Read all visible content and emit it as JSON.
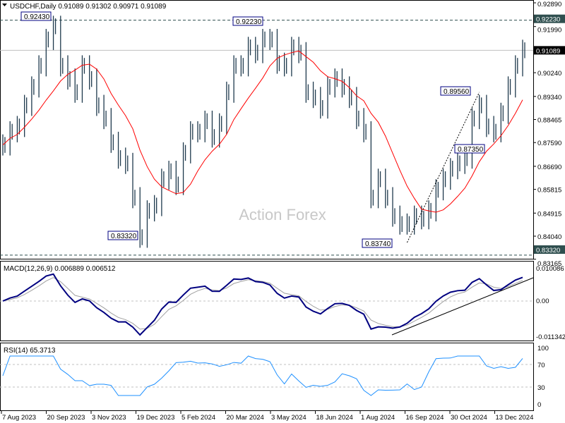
{
  "header": {
    "symbol": "USDCHF,Daily",
    "ohlc": "0.91089 0.91302 0.90971 0.91089",
    "collapse_icon": "triangle-down-icon"
  },
  "watermark": "Action Forex",
  "colors": {
    "bars": "#1f3a4d",
    "ma": "#ff0000",
    "macd": "#000080",
    "signal": "#a0a0a0",
    "rsi": "#1e90ff",
    "label_border": "#000080",
    "trendline": "#000000"
  },
  "chart_data": [
    {
      "type": "bar",
      "title": "USDCHF,Daily",
      "ylim": [
        0.83165,
        0.9289
      ],
      "y_ticks": [
        "0.92890",
        "0.91990",
        "0.90240",
        "0.89340",
        "0.88465",
        "0.87590",
        "0.86690",
        "0.85815",
        "0.84915",
        "0.84040",
        "0.83165"
      ],
      "current_price": "0.91089",
      "horizontal_levels": [
        "0.92230",
        "0.83320"
      ],
      "annotations": [
        "0.92430",
        "0.92230",
        "0.89560",
        "0.87350",
        "0.83740",
        "0.83320"
      ],
      "x_ticks": [
        "7 Aug 2023",
        "20 Sep 2023",
        "3 Nov 2023",
        "19 Dec 2023",
        "5 Feb 2024",
        "20 Mar 2024",
        "3 May 2024",
        "18 Jun 2024",
        "1 Aug 2024",
        "16 Sep 2024",
        "30 Oct 2024",
        "13 Dec 2024"
      ],
      "series": [
        {
          "values": [
            0.875,
            0.88,
            0.882,
            0.89,
            0.897,
            0.905,
            0.915,
            0.92,
            0.905,
            0.9,
            0.895,
            0.905,
            0.9,
            0.89,
            0.885,
            0.876,
            0.87,
            0.868,
            0.855,
            0.84,
            0.85,
            0.852,
            0.862,
            0.865,
            0.86,
            0.872,
            0.88,
            0.88,
            0.884,
            0.878,
            0.883,
            0.895,
            0.905,
            0.905,
            0.912,
            0.91,
            0.915,
            0.915,
            0.906,
            0.905,
            0.912,
            0.91,
            0.895,
            0.893,
            0.889,
            0.897,
            0.9,
            0.897,
            0.893,
            0.885,
            0.88,
            0.855,
            0.862,
            0.855,
            0.848,
            0.845,
            0.845,
            0.848,
            0.847,
            0.85,
            0.858,
            0.862,
            0.866,
            0.868,
            0.87,
            0.885,
            0.89,
            0.882,
            0.88,
            0.887,
            0.897,
            0.905,
            0.9109
          ]
        }
      ]
    },
    {
      "type": "line",
      "title": "MACD(12,26,9) 0.006889 0.006512",
      "ylim": [
        -0.011342,
        0.010086
      ],
      "y_ticks": [
        "0.010086",
        "0.00",
        "-0.011342"
      ]
    },
    {
      "type": "line",
      "title": "RSI(14) 65.3713",
      "ylim": [
        0,
        100
      ],
      "y_ticks": [
        "100",
        "70",
        "30",
        "0"
      ],
      "levels": [
        70,
        30
      ]
    }
  ]
}
